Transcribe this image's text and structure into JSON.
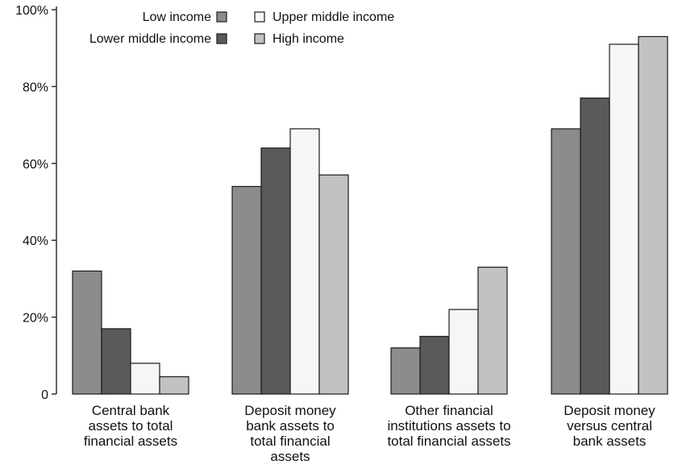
{
  "chart_data": {
    "type": "bar",
    "title": "",
    "xlabel": "",
    "ylabel": "",
    "ylim": [
      0,
      100
    ],
    "yticks": [
      {
        "value": 0,
        "label": "0"
      },
      {
        "value": 20,
        "label": "20%"
      },
      {
        "value": 40,
        "label": "40%"
      },
      {
        "value": 60,
        "label": "60%"
      },
      {
        "value": 80,
        "label": "80%"
      },
      {
        "value": 100,
        "label": "100%"
      }
    ],
    "grid": false,
    "legend_position": "top-left",
    "categories": [
      [
        "Central bank",
        "assets to total",
        "financial assets"
      ],
      [
        "Deposit money",
        "bank assets to",
        "total financial",
        "assets"
      ],
      [
        "Other financial",
        "institutions assets to",
        "total financial assets"
      ],
      [
        "Deposit money",
        "versus central",
        "bank assets"
      ]
    ],
    "series": [
      {
        "name": "Low income",
        "color": "#8c8c8c",
        "values": [
          32,
          54,
          12,
          69
        ]
      },
      {
        "name": "Lower middle income",
        "color": "#5a5a5a",
        "values": [
          17,
          64,
          15,
          77
        ]
      },
      {
        "name": "Upper middle income",
        "color": "#f6f6f6",
        "values": [
          8,
          69,
          22,
          91
        ]
      },
      {
        "name": "High income",
        "color": "#c2c2c2",
        "values": [
          4.5,
          57,
          33,
          93
        ]
      }
    ]
  }
}
